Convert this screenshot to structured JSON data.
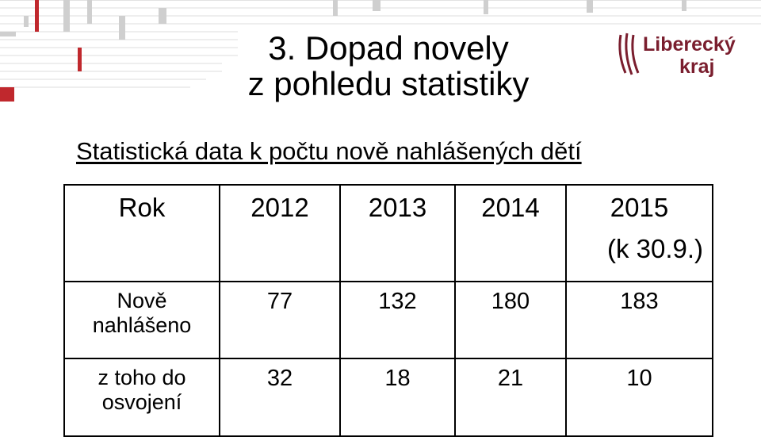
{
  "slide": {
    "title_line1": "3. Dopad novely",
    "title_line2": "z pohledu statistiky",
    "subtitle": "Statistická data k počtu nově nahlášených dětí"
  },
  "logo": {
    "line1": "Liberecký",
    "line2": "kraj",
    "color": "#7a1e2e"
  },
  "colors": {
    "accent_red": "#c0282d",
    "grid_gray": "#dcdcdc"
  },
  "table": {
    "header": {
      "label": "Rok",
      "years": [
        "2012",
        "2013",
        "2014",
        "2015"
      ],
      "last_note": "(k 30.9.)"
    },
    "rows": [
      {
        "label_line1": "Nově",
        "label_line2": "nahlášeno",
        "values": [
          "77",
          "132",
          "180",
          "183"
        ]
      },
      {
        "label_line1": "z toho do",
        "label_line2": "osvojení",
        "values": [
          "32",
          "18",
          "21",
          "10"
        ]
      }
    ]
  }
}
